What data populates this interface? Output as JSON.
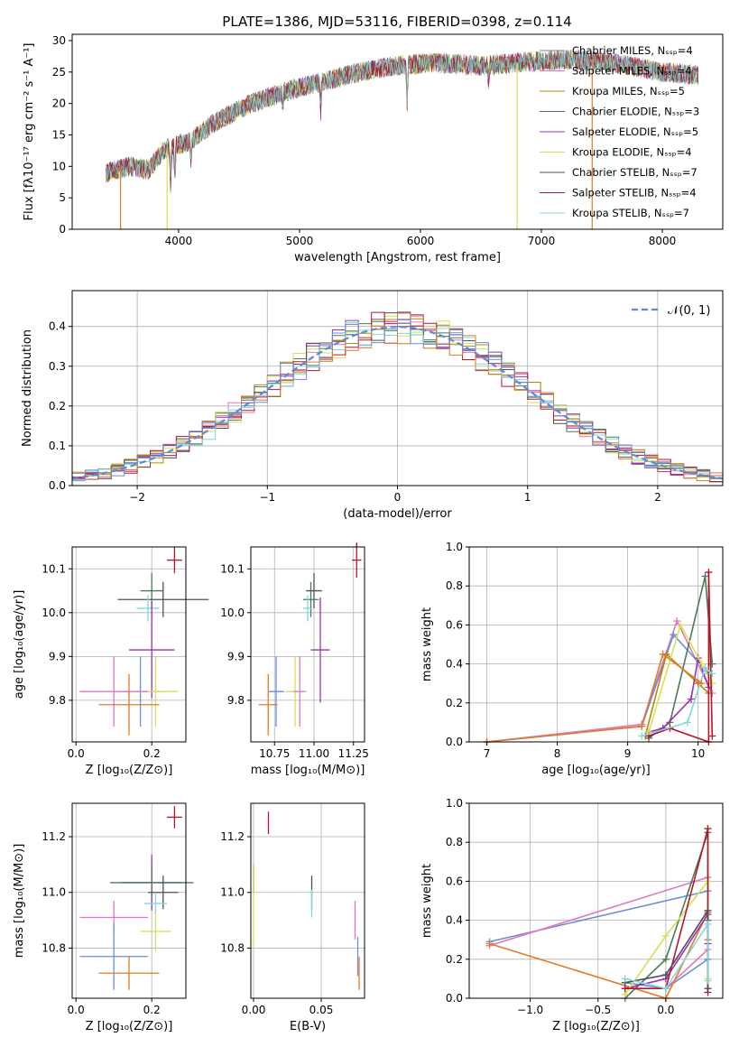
{
  "figure": {
    "title": "PLATE=1386, MJD=53116, FIBERID=0398, z=0.114"
  },
  "colors": [
    "#7f7f7f",
    "#e377c2",
    "#b8860b",
    "#4a7a56",
    "#9b30b0",
    "#d4e157",
    "#505050",
    "#b2182b",
    "#80d8dc",
    "#e07b27",
    "#6a8fd8"
  ],
  "chart_data": [
    {
      "type": "line",
      "name": "spectrum",
      "xlabel": "wavelength [Angstrom, rest frame]",
      "ylabel": "Flux [fλ10⁻¹⁷ erg cm⁻² s⁻¹ A⁻¹]",
      "xlim": [
        3120,
        8500
      ],
      "ylim": [
        0,
        31
      ],
      "xticks": [
        4000,
        5000,
        6000,
        7000,
        8000
      ],
      "yticks": [
        0,
        5,
        10,
        15,
        20,
        25,
        30
      ],
      "grid": false,
      "legend_position": "upper right",
      "continuum": [
        [
          3400,
          9
        ],
        [
          3600,
          10
        ],
        [
          3750,
          9.5
        ],
        [
          3900,
          13
        ],
        [
          4100,
          14
        ],
        [
          4300,
          17
        ],
        [
          4600,
          20
        ],
        [
          4900,
          22
        ],
        [
          5200,
          23.5
        ],
        [
          5500,
          25
        ],
        [
          5800,
          26
        ],
        [
          6100,
          26.5
        ],
        [
          6500,
          26
        ],
        [
          6800,
          26.5
        ],
        [
          7200,
          27
        ],
        [
          7600,
          26.5
        ],
        [
          8000,
          25
        ],
        [
          8300,
          24.5
        ]
      ],
      "series": [
        {
          "name": "Chabrier MILES, Nₛₛₚ=4",
          "color": "#7f7f7f"
        },
        {
          "name": "Salpeter MILES, Nₛₛₚ=4",
          "color": "#e377c2"
        },
        {
          "name": "Kroupa MILES, Nₛₛₚ=5",
          "color": "#b8860b"
        },
        {
          "name": "Chabrier ELODIE, Nₛₛₚ=3",
          "color": "#4a7a56"
        },
        {
          "name": "Salpeter ELODIE, Nₛₛₚ=5",
          "color": "#9b30b0"
        },
        {
          "name": "Kroupa ELODIE, Nₛₛₚ=4",
          "color": "#d4e157"
        },
        {
          "name": "Chabrier STELIB, Nₛₛₚ=7",
          "color": "#505050"
        },
        {
          "name": "Salpeter STELIB, Nₛₛₚ=4",
          "color": "#b2182b"
        },
        {
          "name": "Kroupa STELIB, Nₛₛₚ=7",
          "color": "#80d8dc"
        }
      ]
    },
    {
      "type": "histogram",
      "name": "residuals",
      "xlabel": "(data-model)/error",
      "ylabel": "Normed distribution",
      "xlim": [
        -2.5,
        2.5
      ],
      "ylim": [
        0,
        0.49
      ],
      "xticks": [
        -2,
        -1,
        0,
        1,
        2
      ],
      "yticks": [
        0.0,
        0.1,
        0.2,
        0.3,
        0.4
      ],
      "grid": true,
      "legend_position": "upper right",
      "bin_width": 0.1,
      "reference_curve": {
        "name": "𝒩(0, 1)",
        "color": "#5b8bd6",
        "style": "dashed"
      }
    },
    {
      "type": "scatter",
      "name": "age-vs-Z",
      "xlabel": "Z [log₁₀(Z/Z⊙)]",
      "ylabel": "age  [log₁₀(age/yr)]",
      "xlim": [
        -0.01,
        0.29
      ],
      "ylim": [
        9.705,
        10.15
      ],
      "xticks": [
        0.0,
        0.2
      ],
      "yticks": [
        9.8,
        9.9,
        10.0,
        10.1
      ],
      "grid": true,
      "points": [
        {
          "x": 0.23,
          "xerr": 0.12,
          "y": 10.03,
          "yerr": 0.04,
          "color": "#505050"
        },
        {
          "x": 0.26,
          "xerr": 0.02,
          "y": 10.12,
          "yerr": 0.03,
          "color": "#b2182b"
        },
        {
          "x": 0.2,
          "xerr": 0.03,
          "y": 10.05,
          "yerr": 0.04,
          "color": "#4a7a56"
        },
        {
          "x": 0.19,
          "xerr": 0.03,
          "y": 10.01,
          "yerr": 0.03,
          "color": "#80d8dc"
        },
        {
          "x": 0.2,
          "xerr": 0.06,
          "y": 9.915,
          "yerr": 0.11,
          "color": "#9b30b0"
        },
        {
          "x": 0.17,
          "xerr": 0.06,
          "y": 9.82,
          "yerr": 0.08,
          "color": "#6a8fd8"
        },
        {
          "x": 0.21,
          "xerr": 0.06,
          "y": 9.82,
          "yerr": 0.08,
          "color": "#d4e157"
        },
        {
          "x": 0.1,
          "xerr": 0.09,
          "y": 9.82,
          "yerr": 0.08,
          "color": "#e377c2"
        },
        {
          "x": 0.14,
          "xerr": 0.08,
          "y": 9.79,
          "yerr": 0.07,
          "color": "#e07b27"
        }
      ]
    },
    {
      "type": "scatter",
      "name": "age-vs-mass",
      "xlabel": "mass [log₁₀(M/M⊙)]",
      "ylabel": "",
      "xlim": [
        10.6,
        11.32
      ],
      "ylim": [
        9.705,
        10.15
      ],
      "xticks": [
        10.75,
        11.0,
        11.25
      ],
      "yticks": [
        9.8,
        9.9,
        10.0,
        10.1
      ],
      "grid": true,
      "points": [
        {
          "x": 11.27,
          "xerr": 0.03,
          "y": 10.12,
          "yerr": 0.04,
          "color": "#b2182b"
        },
        {
          "x": 11.0,
          "xerr": 0.05,
          "y": 10.05,
          "yerr": 0.04,
          "color": "#505050"
        },
        {
          "x": 10.98,
          "xerr": 0.05,
          "y": 10.03,
          "yerr": 0.04,
          "color": "#4a7a56"
        },
        {
          "x": 10.96,
          "xerr": 0.03,
          "y": 10.01,
          "yerr": 0.03,
          "color": "#80d8dc"
        },
        {
          "x": 11.04,
          "xerr": 0.06,
          "y": 9.915,
          "yerr": 0.12,
          "color": "#9b30b0"
        },
        {
          "x": 10.76,
          "xerr": 0.05,
          "y": 9.82,
          "yerr": 0.08,
          "color": "#6a8fd8"
        },
        {
          "x": 10.88,
          "xerr": 0.06,
          "y": 9.82,
          "yerr": 0.08,
          "color": "#d4e157"
        },
        {
          "x": 10.91,
          "xerr": 0.04,
          "y": 9.82,
          "yerr": 0.08,
          "color": "#e377c2"
        },
        {
          "x": 10.71,
          "xerr": 0.06,
          "y": 9.79,
          "yerr": 0.07,
          "color": "#e07b27"
        }
      ]
    },
    {
      "type": "line",
      "name": "weight-vs-age",
      "xlabel": "age  [log₁₀(age/yr)]",
      "ylabel": "mass weight",
      "xlim": [
        6.75,
        10.35
      ],
      "ylim": [
        0,
        1.0
      ],
      "xticks": [
        7,
        8,
        9,
        10
      ],
      "yticks": [
        0.0,
        0.2,
        0.4,
        0.6,
        0.8,
        1.0
      ],
      "grid": true,
      "series": [
        {
          "color": "#e377c2",
          "points": [
            [
              7.0,
              0.0
            ],
            [
              9.2,
              0.09
            ],
            [
              9.7,
              0.62
            ],
            [
              10.2,
              0.25
            ]
          ]
        },
        {
          "color": "#6a8fd8",
          "points": [
            [
              7.0,
              0.0
            ],
            [
              9.2,
              0.08
            ],
            [
              9.65,
              0.55
            ],
            [
              10.15,
              0.35
            ]
          ]
        },
        {
          "color": "#b8860b",
          "points": [
            [
              9.25,
              0.03
            ],
            [
              9.55,
              0.45
            ],
            [
              10.0,
              0.3
            ],
            [
              10.15,
              0.25
            ]
          ]
        },
        {
          "color": "#4a7a56",
          "points": [
            [
              9.3,
              0.02
            ],
            [
              9.6,
              0.1
            ],
            [
              10.1,
              0.85
            ],
            [
              10.2,
              0.4
            ]
          ]
        },
        {
          "color": "#9b30b0",
          "points": [
            [
              9.3,
              0.05
            ],
            [
              9.5,
              0.07
            ],
            [
              9.9,
              0.22
            ],
            [
              10.0,
              0.43
            ],
            [
              10.15,
              0.28
            ]
          ]
        },
        {
          "color": "#d4e157",
          "points": [
            [
              9.3,
              0.05
            ],
            [
              9.75,
              0.6
            ],
            [
              10.05,
              0.4
            ],
            [
              10.2,
              0.3
            ]
          ]
        },
        {
          "color": "#b2182b",
          "points": [
            [
              9.3,
              0.03
            ],
            [
              9.6,
              0.07
            ],
            [
              10.15,
              0.0
            ],
            [
              10.15,
              0.87
            ],
            [
              10.2,
              0.03
            ]
          ]
        },
        {
          "color": "#80d8dc",
          "points": [
            [
              9.2,
              0.03
            ],
            [
              9.85,
              0.1
            ],
            [
              10.1,
              0.38
            ],
            [
              10.2,
              0.35
            ]
          ]
        },
        {
          "color": "#e07b27",
          "points": [
            [
              7.0,
              0.0
            ],
            [
              9.2,
              0.08
            ],
            [
              9.5,
              0.45
            ],
            [
              10.05,
              0.3
            ]
          ]
        }
      ]
    },
    {
      "type": "scatter",
      "name": "mass-vs-Z",
      "xlabel": "Z [log₁₀(Z/Z⊙)]",
      "ylabel": "mass [log₁₀(M/M⊙)]",
      "xlim": [
        -0.01,
        0.29
      ],
      "ylim": [
        10.62,
        11.32
      ],
      "xticks": [
        0.0,
        0.2
      ],
      "yticks": [
        10.8,
        11.0,
        11.2
      ],
      "grid": true,
      "points": [
        {
          "x": 0.26,
          "xerr": 0.02,
          "y": 11.27,
          "yerr": 0.04,
          "color": "#b2182b"
        },
        {
          "x": 0.2,
          "xerr": 0.08,
          "y": 11.035,
          "yerr": 0.1,
          "color": "#9b30b0"
        },
        {
          "x": 0.2,
          "xerr": 0.11,
          "y": 11.035,
          "yerr": 0.05,
          "color": "#4a7a56"
        },
        {
          "x": 0.23,
          "xerr": 0.04,
          "y": 11.0,
          "yerr": 0.06,
          "color": "#505050"
        },
        {
          "x": 0.21,
          "xerr": 0.03,
          "y": 10.96,
          "yerr": 0.04,
          "color": "#80d8dc"
        },
        {
          "x": 0.1,
          "xerr": 0.09,
          "y": 10.91,
          "yerr": 0.06,
          "color": "#e377c2"
        },
        {
          "x": 0.21,
          "xerr": 0.04,
          "y": 10.86,
          "yerr": 0.07,
          "color": "#d4e157"
        },
        {
          "x": 0.1,
          "xerr": 0.09,
          "y": 10.77,
          "yerr": 0.12,
          "color": "#6a8fd8"
        },
        {
          "x": 0.14,
          "xerr": 0.08,
          "y": 10.71,
          "yerr": 0.06,
          "color": "#e07b27"
        }
      ]
    },
    {
      "type": "scatter",
      "name": "mass-vs-EBV",
      "xlabel": "E(B-V)",
      "ylabel": "",
      "xlim": [
        -0.002,
        0.082
      ],
      "ylim": [
        10.62,
        11.32
      ],
      "xticks": [
        0.0,
        0.05
      ],
      "yticks": [
        10.8,
        11.0,
        11.2
      ],
      "grid": true,
      "points": [
        {
          "x": 0.011,
          "xerr": 0.0,
          "y": 11.25,
          "yerr": 0.04,
          "color": "#b2182b"
        },
        {
          "x": 0.0,
          "xerr": 0.0,
          "y": 11.05,
          "yerr": 0.05,
          "color": "#9b30b0"
        },
        {
          "x": 0.0,
          "xerr": 0.0,
          "y": 10.95,
          "yerr": 0.15,
          "color": "#d4e157"
        },
        {
          "x": 0.043,
          "xerr": 0.0,
          "y": 11.0,
          "yerr": 0.06,
          "color": "#505050"
        },
        {
          "x": 0.043,
          "xerr": 0.0,
          "y": 10.96,
          "yerr": 0.05,
          "color": "#80d8dc"
        },
        {
          "x": 0.075,
          "xerr": 0.0,
          "y": 10.9,
          "yerr": 0.07,
          "color": "#e377c2"
        },
        {
          "x": 0.077,
          "xerr": 0.0,
          "y": 10.77,
          "yerr": 0.07,
          "color": "#6a8fd8"
        },
        {
          "x": 0.078,
          "xerr": 0.0,
          "y": 10.71,
          "yerr": 0.06,
          "color": "#e07b27"
        }
      ]
    },
    {
      "type": "line",
      "name": "weight-vs-Z",
      "xlabel": "Z [log₁₀(Z/Z⊙)]",
      "ylabel": "mass weight",
      "xlim": [
        -1.45,
        0.42
      ],
      "ylim": [
        0,
        1.0
      ],
      "xticks": [
        -1.0,
        -0.5,
        0.0
      ],
      "yticks": [
        0.0,
        0.2,
        0.4,
        0.6,
        0.8,
        1.0
      ],
      "grid": true,
      "series": [
        {
          "color": "#6a8fd8",
          "points": [
            [
              -1.3,
              0.29
            ],
            [
              0.31,
              0.55
            ],
            [
              0.31,
              0.2
            ],
            [
              0.0,
              0.05
            ],
            [
              -0.3,
              0.08
            ]
          ]
        },
        {
          "color": "#e377c2",
          "points": [
            [
              -1.3,
              0.27
            ],
            [
              0.31,
              0.62
            ],
            [
              0.31,
              0.25
            ],
            [
              0.0,
              0.05
            ]
          ]
        },
        {
          "color": "#e07b27",
          "points": [
            [
              -1.3,
              0.28
            ],
            [
              0.0,
              0.0
            ],
            [
              0.31,
              0.44
            ],
            [
              0.31,
              0.3
            ]
          ]
        },
        {
          "color": "#4a7a56",
          "points": [
            [
              -0.3,
              0.0
            ],
            [
              0.0,
              0.2
            ],
            [
              0.31,
              0.85
            ],
            [
              0.31,
              0.4
            ]
          ]
        },
        {
          "color": "#9b30b0",
          "points": [
            [
              -0.3,
              0.05
            ],
            [
              0.0,
              0.1
            ],
            [
              0.31,
              0.43
            ],
            [
              0.31,
              0.28
            ]
          ]
        },
        {
          "color": "#d4e157",
          "points": [
            [
              -0.3,
              0.02
            ],
            [
              0.0,
              0.32
            ],
            [
              0.31,
              0.6
            ],
            [
              0.31,
              0.1
            ]
          ]
        },
        {
          "color": "#b2182b",
          "points": [
            [
              -0.3,
              0.05
            ],
            [
              0.0,
              0.05
            ],
            [
              0.31,
              0.87
            ],
            [
              0.31,
              0.03
            ]
          ]
        },
        {
          "color": "#505050",
          "points": [
            [
              -0.3,
              0.08
            ],
            [
              0.0,
              0.12
            ],
            [
              0.31,
              0.45
            ],
            [
              0.31,
              0.05
            ]
          ]
        },
        {
          "color": "#80d8dc",
          "points": [
            [
              -0.3,
              0.1
            ],
            [
              0.0,
              0.05
            ],
            [
              0.31,
              0.38
            ],
            [
              0.31,
              0.09
            ]
          ]
        }
      ]
    }
  ]
}
